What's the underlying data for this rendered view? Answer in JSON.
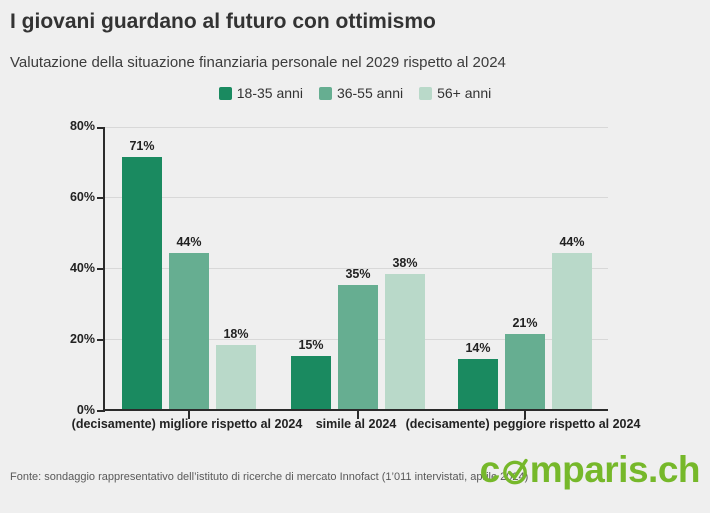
{
  "header": {
    "title": "I giovani guardano al futuro con ottimismo",
    "subtitle": "Valutazione della situazione finanziaria personale nel 2029 rispetto al 2024"
  },
  "chart_data": {
    "type": "bar",
    "categories": [
      "(decisamente) migliore rispetto al 2024",
      "simile al 2024",
      "(decisamente) peggiore rispetto al 2024"
    ],
    "series": [
      {
        "name": "18-35 anni",
        "color": "#1a8a60",
        "values": [
          71,
          15,
          14
        ]
      },
      {
        "name": "36-55 anni",
        "color": "#66ae91",
        "values": [
          44,
          35,
          21
        ]
      },
      {
        "name": "56+ anni",
        "color": "#b9d9c9",
        "values": [
          18,
          38,
          44
        ]
      }
    ],
    "ylabel": "",
    "xlabel": "",
    "ylim": [
      0,
      80
    ],
    "yticks": [
      "80%",
      "60%",
      "40%",
      "20%",
      "0%"
    ],
    "value_suffix": "%",
    "grid": true,
    "legend_position": "top-center"
  },
  "footer": {
    "source": "Fonte: sondaggio rappresentativo dell’istituto di ricerche di mercato Innofact (1’011 intervistati, aprile 2024)",
    "logo_pre": "c",
    "logo_post": "mparis.ch",
    "logo_color": "#76b82a"
  }
}
